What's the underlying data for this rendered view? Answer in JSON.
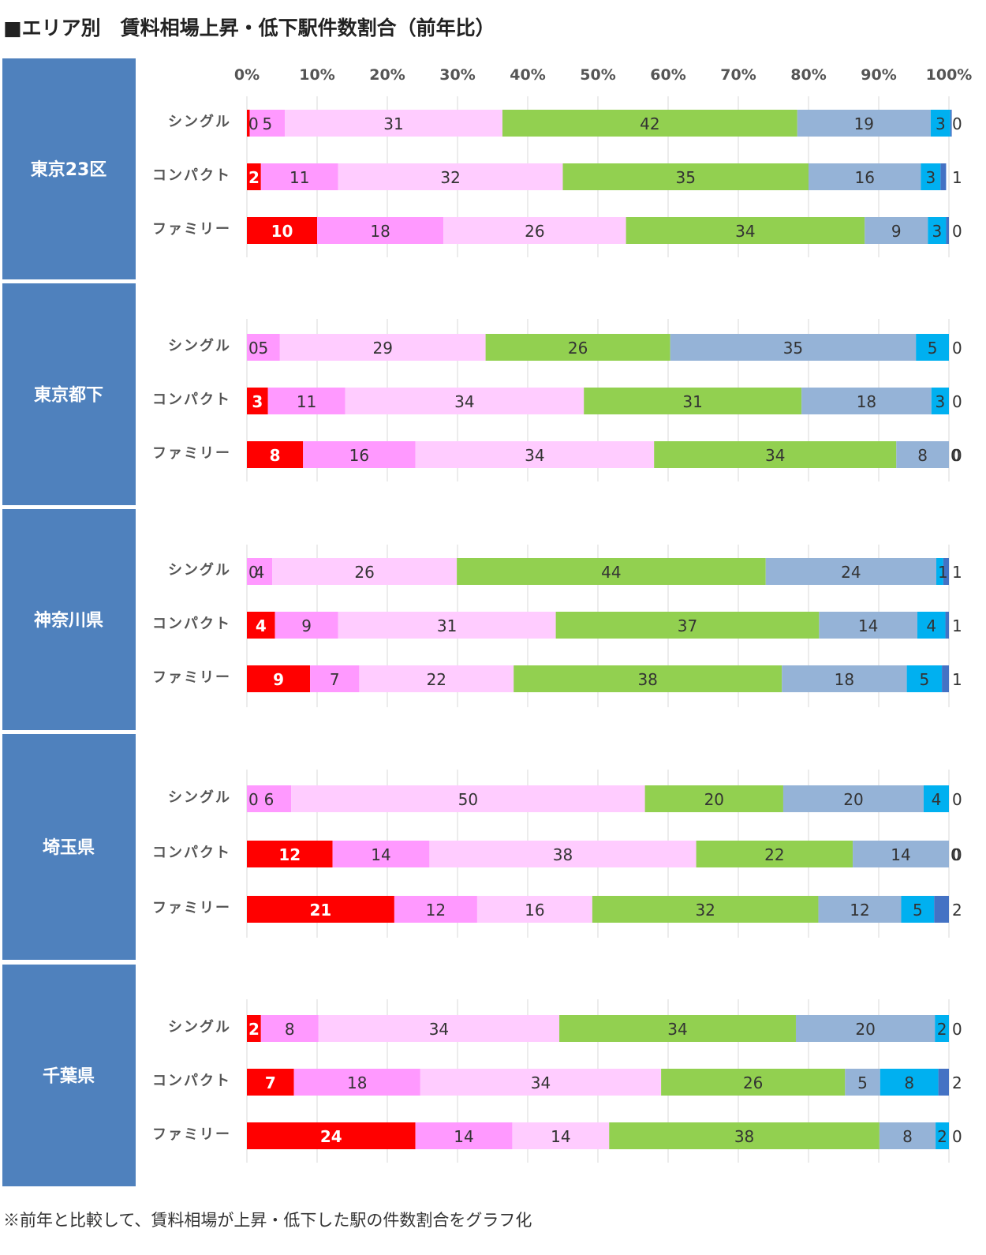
{
  "title": "■エリア別　賃料相場上昇・低下駅件数割合（前年比）",
  "footnote": "※前年と比較して、賃料相場が上昇・低下した駅の件数割合をグラフ化",
  "colors": {
    "region_bg": "#4f81bd",
    "region_text": "#ffffff",
    "segments": [
      "#ff0000",
      "#ff99ff",
      "#ffccff",
      "#92d050",
      "#95b3d7",
      "#00b0f0",
      "#4472c4"
    ],
    "segment_text_light": "#ffffff",
    "segment_text_dark": "#333333",
    "grid": "#d9d9d9",
    "axis_text": "#555555",
    "category_text": "#555555"
  },
  "chart_data": {
    "type": "bar",
    "orientation": "horizontal",
    "stacked": true,
    "unit": "%",
    "xlim": [
      0,
      100
    ],
    "ticks": [
      "0%",
      "10%",
      "20%",
      "30%",
      "40%",
      "50%",
      "60%",
      "70%",
      "80%",
      "90%",
      "100%"
    ],
    "tick_values": [
      0,
      10,
      20,
      30,
      40,
      50,
      60,
      70,
      80,
      90,
      100
    ],
    "categories": [
      "シングル",
      "コンパクト",
      "ファミリー"
    ],
    "grid": true,
    "legend": "none",
    "panels": [
      {
        "region": "東京23区",
        "rows": [
          {
            "category": "シングル",
            "values": [
              0.4,
              5,
              31,
              42,
              19,
              2.8,
              0.2
            ],
            "labels": [
              "0",
              "5",
              "31",
              "42",
              "19",
              "3",
              "0"
            ]
          },
          {
            "category": "コンパクト",
            "values": [
              2,
              11,
              32,
              35,
              16,
              2.8,
              0.8
            ],
            "labels": [
              "2",
              "11",
              "32",
              "35",
              "16",
              "3",
              "1"
            ]
          },
          {
            "category": "ファミリー",
            "values": [
              10,
              18,
              26,
              34,
              9,
              2.6,
              0.4
            ],
            "labels": [
              "10",
              "18",
              "26",
              "34",
              "9",
              "3",
              "0"
            ]
          }
        ]
      },
      {
        "region": "東京都下",
        "rows": [
          {
            "category": "シングル",
            "values": [
              0,
              4.7,
              29.3,
              26.3,
              35,
              4.7,
              0
            ],
            "labels": [
              "0",
              "5",
              "29",
              "26",
              "35",
              "5",
              "0"
            ]
          },
          {
            "category": "コンパクト",
            "values": [
              3,
              11,
              34,
              31,
              18.5,
              2.5,
              0
            ],
            "labels": [
              "3",
              "11",
              "34",
              "31",
              "18",
              "3",
              "0"
            ]
          },
          {
            "category": "ファミリー",
            "values": [
              8,
              16,
              34,
              34.5,
              7.5,
              0,
              0
            ],
            "labels": [
              "8",
              "16",
              "34",
              "34",
              "8",
              "0",
              "0"
            ]
          }
        ]
      },
      {
        "region": "神奈川県",
        "rows": [
          {
            "category": "シングル",
            "values": [
              0,
              3.6,
              26.3,
              44,
              24.3,
              1,
              0.8
            ],
            "labels": [
              "0",
              "4",
              "26",
              "44",
              "24",
              "1",
              "1"
            ]
          },
          {
            "category": "コンパクト",
            "values": [
              4,
              9,
              31,
              37.5,
              14,
              4,
              0.5
            ],
            "labels": [
              "4",
              "9",
              "31",
              "37",
              "14",
              "4",
              "1"
            ]
          },
          {
            "category": "ファミリー",
            "values": [
              9,
              7,
              22,
              38.2,
              17.8,
              5,
              1
            ],
            "labels": [
              "9",
              "7",
              "22",
              "38",
              "18",
              "5",
              "1"
            ]
          }
        ]
      },
      {
        "region": "埼玉県",
        "rows": [
          {
            "category": "シングル",
            "values": [
              0,
              6.3,
              50.4,
              19.7,
              20,
              3.6,
              0
            ],
            "labels": [
              "0",
              "6",
              "50",
              "20",
              "20",
              "4",
              "0"
            ]
          },
          {
            "category": "コンパクト",
            "values": [
              12.2,
              13.8,
              38,
              22.3,
              13.7,
              0,
              0
            ],
            "labels": [
              "12",
              "14",
              "38",
              "22",
              "14",
              "0",
              "0"
            ]
          },
          {
            "category": "ファミリー",
            "values": [
              21,
              11.8,
              16.4,
              32.2,
              11.8,
              4.7,
              2.1
            ],
            "labels": [
              "21",
              "12",
              "16",
              "32",
              "12",
              "5",
              "2"
            ]
          }
        ]
      },
      {
        "region": "千葉県",
        "rows": [
          {
            "category": "シングル",
            "values": [
              2,
              8.2,
              34.3,
              33.7,
              19.8,
              2,
              0
            ],
            "labels": [
              "2",
              "8",
              "34",
              "34",
              "20",
              "2",
              "0"
            ]
          },
          {
            "category": "コンパクト",
            "values": [
              6.7,
              18,
              34.3,
              26.2,
              5,
              8.3,
              1.5
            ],
            "labels": [
              "7",
              "18",
              "34",
              "26",
              "5",
              "8",
              "2"
            ]
          },
          {
            "category": "ファミリー",
            "values": [
              24,
              13.8,
              13.8,
              38.5,
              8,
              1.9,
              0
            ],
            "labels": [
              "24",
              "14",
              "14",
              "38",
              "8",
              "2",
              "0"
            ]
          }
        ]
      }
    ]
  }
}
